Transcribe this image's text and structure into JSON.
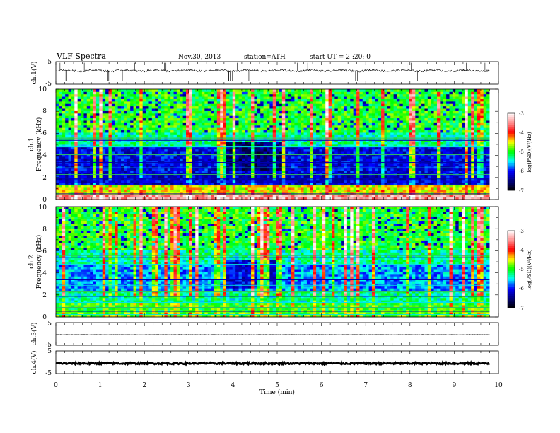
{
  "header": {
    "title": "VLF  Spectra",
    "date": "Nov.30, 2013",
    "station": "station=ATH",
    "start": "start  UT  =   2  :20: 0"
  },
  "chart_data": {
    "type": "heatmap",
    "x_axis": {
      "label": "Time  (min)",
      "range": [
        0,
        10
      ],
      "ticks": [
        "0",
        "1",
        "2",
        "3",
        "4",
        "5",
        "6",
        "7",
        "8",
        "9",
        "10"
      ],
      "data_end_min": 9.8
    },
    "panels": [
      {
        "id": "ch1-waveform",
        "type": "line",
        "ylabel": "ch.1(V)",
        "ylim": [
          -5,
          5
        ],
        "yticks": [
          "5",
          "-5"
        ],
        "description_values": {
          "baseline_v": 1.0,
          "spike_count_approx": 30
        }
      },
      {
        "id": "ch1-spectrogram",
        "type": "heatmap",
        "ylabel_line1": "ch.1",
        "ylabel_line2": "Frequency  (kHz)",
        "ylim": [
          0,
          10
        ],
        "yticks": [
          "10",
          "8",
          "6",
          "4",
          "2",
          "0"
        ],
        "colorbar": {
          "label": "log(PSD)(V²/Hz)",
          "range": [
            -7,
            -3
          ],
          "ticks": [
            "-3",
            "-4",
            "-5",
            "-6",
            "-7"
          ]
        }
      },
      {
        "id": "ch2-spectrogram",
        "type": "heatmap",
        "ylabel_line1": "ch.2",
        "ylabel_line2": "Frequency  (kHz)",
        "ylim": [
          0,
          10
        ],
        "yticks": [
          "10",
          "8",
          "6",
          "4",
          "2",
          "0"
        ],
        "colorbar": {
          "label": "log(PSD)(V²/Hz)",
          "range": [
            -7,
            -3
          ],
          "ticks": [
            "-3",
            "-4",
            "-5",
            "-6",
            "-7"
          ]
        }
      },
      {
        "id": "ch3-waveform",
        "type": "line",
        "ylabel": "ch.3(V)",
        "ylim": [
          -5,
          5
        ],
        "yticks": [
          "5",
          "-5"
        ],
        "description_values": {
          "baseline_v": -0.3
        }
      },
      {
        "id": "ch4-waveform",
        "type": "line",
        "ylabel": "ch.4(V)",
        "ylim": [
          -5,
          5
        ],
        "yticks": [
          "5",
          "-5"
        ],
        "description_values": {
          "baseline_v": -0.5,
          "band_thickness_v": 0.8
        }
      }
    ],
    "colormap": [
      "#000000",
      "#000080",
      "#0000ff",
      "#00ffff",
      "#00ff00",
      "#ffff00",
      "#ff0000",
      "#ff9090",
      "#ffffff"
    ],
    "grid": false
  }
}
